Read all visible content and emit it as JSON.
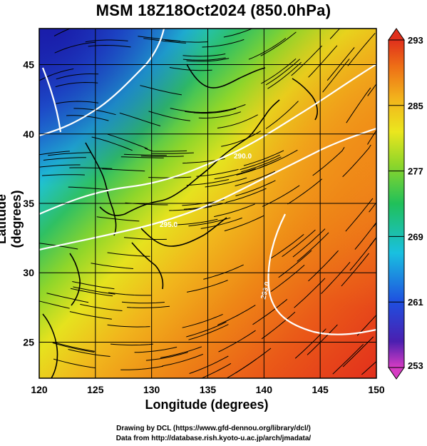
{
  "title": "MSM 18Z18Oct2024 (850.0hPa)",
  "map": {
    "xlabel": "Longitude (degrees)",
    "ylabel": "Latitude  (degrees)",
    "xlim": [
      120,
      150
    ],
    "ylim": [
      22.4,
      47.6
    ],
    "xticks": [
      "120",
      "125",
      "130",
      "135",
      "140",
      "145",
      "150"
    ],
    "yticks": [
      "25",
      "30",
      "35",
      "40",
      "45"
    ],
    "grid": true,
    "contour_labels": [
      "290.0",
      "295.0",
      "293.0"
    ]
  },
  "colorbar": {
    "ticks": [
      "293",
      "285",
      "277",
      "269",
      "261",
      "253"
    ],
    "range": [
      253,
      293
    ],
    "colors": [
      "#d63cc3",
      "#2a1fb3",
      "#1f6fe0",
      "#19c6e0",
      "#25c06a",
      "#7fd12a",
      "#e7e51e",
      "#f0b21c",
      "#ee7b14",
      "#e5451b"
    ]
  },
  "credits": {
    "line1": "Drawing by DCL (https://www.gfd-dennou.org/library/dcl/)",
    "line2": "Data from http://database.rish.kyoto-u.ac.jp/arch/jmadata/"
  }
}
